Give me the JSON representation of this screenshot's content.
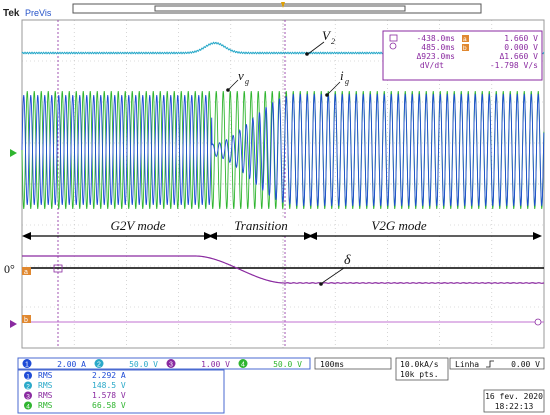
{
  "header": {
    "brand_bold": "Tek",
    "brand_sub": "PreVis"
  },
  "cursor_readout": {
    "c1_time": "-438.0ms",
    "c2_time": "485.0ms",
    "delta_time": "Δ923.0ms",
    "slope_label": "dV/dt",
    "a_marker": "a",
    "b_marker": "b",
    "a_value": "1.660 V",
    "b_value": "0.000 V",
    "delta_value": "Δ1.660 V",
    "slope_value": "-1.798 V/s"
  },
  "annotations": {
    "v2": "V",
    "v2_sub": "2",
    "vg": "v",
    "vg_sub": "g",
    "ig": "i",
    "ig_sub": "g",
    "delta": "δ",
    "zero_deg": "0°",
    "g2v_mode": "G2V mode",
    "transition": "Transition",
    "v2g_mode": "V2G mode"
  },
  "channel_markers": {
    "ch3_ref": "a",
    "ch4_ref": "b"
  },
  "channels": [
    {
      "num": "1",
      "scale": "2.00 A",
      "color": "#1e4bd6"
    },
    {
      "num": "2",
      "scale": "50.0 V",
      "color": "#2aa9c9"
    },
    {
      "num": "3",
      "scale": "1.00 V",
      "color": "#8a2aa0"
    },
    {
      "num": "4",
      "scale": "50.0 V",
      "color": "#2fb52f"
    }
  ],
  "measurements": [
    {
      "num": "1",
      "label": "RMS",
      "value": "2.292 A"
    },
    {
      "num": "2",
      "label": "RMS",
      "value": "148.5 V"
    },
    {
      "num": "3",
      "label": "RMS",
      "value": "1.578 V"
    },
    {
      "num": "4",
      "label": "RMS",
      "value": "66.58 V"
    }
  ],
  "timebase": "100ms",
  "sample_rate": "10.0kA/s",
  "record_length": "10k pts.",
  "trigger": {
    "source": "Linha",
    "slope_icon": "rising-edge-icon",
    "level": "0.00 V"
  },
  "date": "16 fev. 2020",
  "time": "18:22:13"
}
